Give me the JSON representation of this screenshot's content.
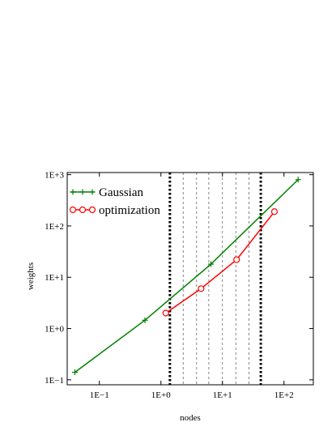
{
  "chart_data": {
    "type": "line",
    "title": "",
    "xlabel": "nodes",
    "ylabel": "weights",
    "xscale": "log",
    "yscale": "log",
    "xlim": [
      0.03,
      300
    ],
    "ylim": [
      0.08,
      1100
    ],
    "x_ticks": [
      0.1,
      1,
      10,
      100
    ],
    "x_tick_labels": [
      "1E−1",
      "1E+0",
      "1E+1",
      "1E+2"
    ],
    "y_ticks": [
      0.1,
      1,
      10,
      100,
      1000
    ],
    "y_tick_labels": [
      "1E−1",
      "1E+0",
      "1E+1",
      "1E+2",
      "1E+3"
    ],
    "grid": false,
    "legend_position": "top-left",
    "series": [
      {
        "name": "Gaussian",
        "color": "#008000",
        "marker": "plus",
        "x": [
          0.04,
          0.55,
          6.5,
          170
        ],
        "y": [
          0.14,
          1.45,
          18,
          800
        ]
      },
      {
        "name": "optimization",
        "color": "#ff0000",
        "marker": "circle",
        "x": [
          1.2,
          4.5,
          17,
          70
        ],
        "y": [
          2.0,
          6.0,
          22,
          190
        ]
      }
    ],
    "vertical_lines": {
      "thick_dotted": [
        1.4,
        42
      ],
      "thin_dashed": [
        2.3,
        3.8,
        6.0,
        10.0,
        16.5,
        27.0
      ]
    }
  }
}
